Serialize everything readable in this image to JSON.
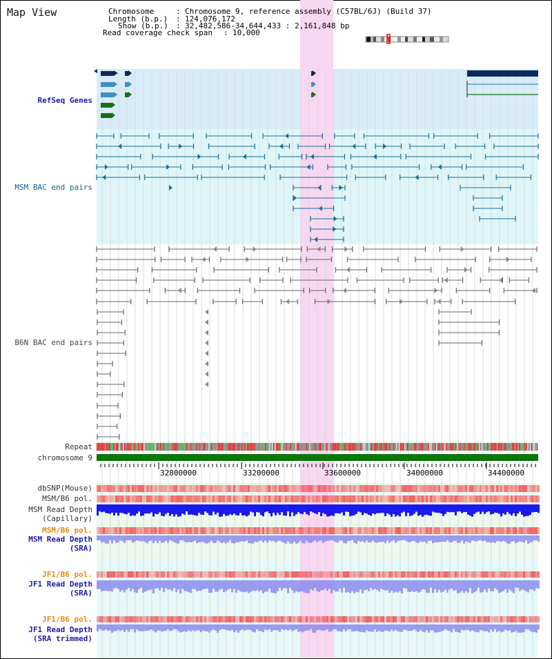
{
  "page": {
    "title": "Map View"
  },
  "header": {
    "chromosome_label": "Chromosome",
    "chromosome_value": "Chromosome 9, reference assembly (C57BL/6J) (Build 37)",
    "length_label": "Length (b.p.)",
    "length_value": "124,076,172",
    "show_label": "Show (b.p.)",
    "show_value": "32,482,586-34,644,433 : 2,161,848 bp",
    "coverage_label": "Read coverage check span",
    "coverage_value": "10,000",
    "separator": ":"
  },
  "tracks": {
    "refseq": "RefSeq Genes",
    "msm_bac": "MSM BAC end pairs",
    "b6n_bac": "B6N BAC end pairs",
    "repeat": "Repeat",
    "chromosome": "chromosome 9",
    "dbsnp": "dbSNP(Mouse)",
    "msm_b6_pol_1": "MSM/B6 pol.",
    "msm_depth_cap_1": "MSM Read Depth",
    "msm_depth_cap_2": "(Capillary)",
    "msm_b6_pol_2": "MSM/B6 pol.",
    "msm_depth_sra_1": "MSM Read Depth",
    "msm_depth_sra_2": "(SRA)",
    "jf1_b6_pol_1": "JF1/B6 pol.",
    "jf1_depth_sra_1": "JF1 Read Depth",
    "jf1_depth_sra_2": "(SRA)",
    "jf1_b6_pol_2": "JF1/B6 pol.",
    "jf1_depth_trim_1": "JF1 Read Depth",
    "jf1_depth_trim_2": "(SRA trimmed)"
  },
  "axis": {
    "ticks": [
      "32800000",
      "33200000",
      "33600000",
      "34000000",
      "34400000"
    ],
    "range_bp": [
      32482586,
      34644433
    ]
  },
  "colors": {
    "highlight": "#f8d7f0",
    "refseq_bg": "#d8ecf8",
    "msm_bg": "#dff6f8",
    "gene_navy": "#0b2a5a",
    "gene_light": "#3f8fbf",
    "gene_green": "#157015",
    "bac_msm": "#1a6e98",
    "bac_b6n": "#666666",
    "chromosome_bar": "#0b770b",
    "snp": "#f06060",
    "depth_blue": "#1a1aee",
    "depth_light": "#7f7ff0"
  }
}
